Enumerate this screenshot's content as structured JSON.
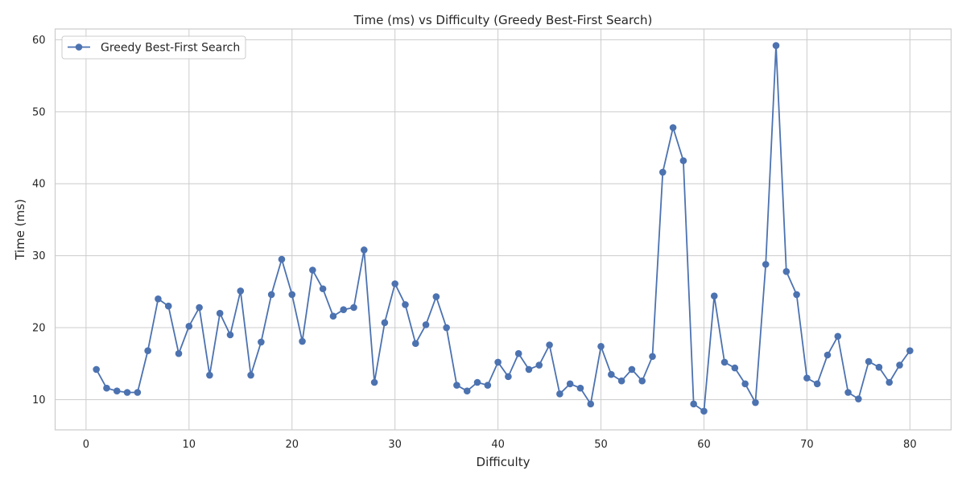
{
  "chart_data": {
    "type": "line",
    "title": "Time (ms) vs Difficulty (Greedy Best-First Search)",
    "xlabel": "Difficulty",
    "ylabel": "Time (ms)",
    "xlim": [
      -3,
      84
    ],
    "ylim": [
      5.8,
      61.5
    ],
    "xticks": [
      0,
      10,
      20,
      30,
      40,
      50,
      60,
      70,
      80
    ],
    "yticks": [
      10,
      20,
      30,
      40,
      50,
      60
    ],
    "grid": true,
    "legend_position": "top-left",
    "colors": {
      "series": "#4c72b0",
      "grid": "#cccccc",
      "text": "#262626"
    },
    "series": [
      {
        "name": "Greedy Best-First Search",
        "marker": "circle",
        "x": [
          1,
          2,
          3,
          4,
          5,
          6,
          7,
          8,
          9,
          10,
          11,
          12,
          13,
          14,
          15,
          16,
          17,
          18,
          19,
          20,
          21,
          22,
          23,
          24,
          25,
          26,
          27,
          28,
          29,
          30,
          31,
          32,
          33,
          34,
          35,
          36,
          37,
          38,
          39,
          40,
          41,
          42,
          43,
          44,
          45,
          46,
          47,
          48,
          49,
          50,
          51,
          52,
          53,
          54,
          55,
          56,
          57,
          58,
          59,
          60,
          61,
          62,
          63,
          64,
          65,
          66,
          67,
          68,
          69,
          70,
          71,
          72,
          73,
          74,
          75,
          76,
          77,
          78,
          79,
          80
        ],
        "values": [
          14.2,
          11.6,
          11.2,
          11.0,
          11.0,
          16.8,
          24.0,
          23.0,
          16.4,
          20.2,
          22.8,
          13.4,
          22.0,
          19.0,
          25.1,
          13.4,
          18.0,
          24.6,
          29.5,
          24.6,
          18.1,
          28.0,
          25.4,
          21.6,
          22.5,
          22.8,
          30.8,
          12.4,
          20.7,
          26.1,
          23.2,
          17.8,
          20.4,
          24.3,
          20.0,
          12.0,
          11.2,
          12.4,
          12.0,
          15.2,
          13.2,
          16.4,
          14.2,
          14.8,
          17.6,
          10.8,
          12.2,
          11.6,
          9.4,
          17.4,
          13.5,
          12.6,
          14.2,
          12.6,
          16.0,
          41.6,
          47.8,
          43.2,
          9.4,
          8.4,
          24.4,
          15.2,
          14.4,
          12.2,
          9.6,
          28.8,
          59.2,
          27.8,
          24.6,
          13.0,
          12.2,
          16.2,
          18.8,
          11.0,
          10.1,
          15.3,
          14.5,
          12.4,
          14.8,
          16.8
        ]
      }
    ]
  }
}
